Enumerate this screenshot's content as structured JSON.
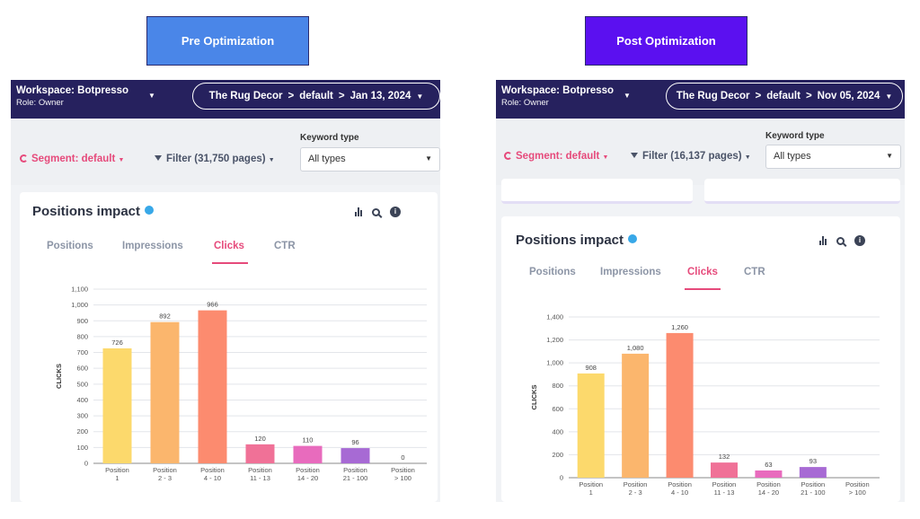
{
  "panels": [
    {
      "key": "pre",
      "badge": {
        "label": "Pre Optimization",
        "color": "#4a86e8"
      },
      "workspace": {
        "name": "Workspace: Botpresso",
        "role": "Role: Owner"
      },
      "breadcrumb": [
        "The Rug Decor",
        "default",
        "Jan 13, 2024"
      ],
      "segment": "Segment: default",
      "filter": "Filter (31,750 pages)",
      "keyword_label": "Keyword type",
      "keyword_value": "All types",
      "card_title": "Positions impact",
      "tabs": [
        "Positions",
        "Impressions",
        "Clicks",
        "CTR"
      ],
      "active_tab": 2
    },
    {
      "key": "post",
      "badge": {
        "label": "Post  Optimization",
        "color": "#5b10f0"
      },
      "workspace": {
        "name": "Workspace: Botpresso",
        "role": "Role: Owner"
      },
      "breadcrumb": [
        "The Rug Decor",
        "default",
        "Nov 05, 2024"
      ],
      "segment": "Segment: default",
      "filter": "Filter (16,137 pages)",
      "keyword_label": "Keyword type",
      "keyword_value": "All types",
      "card_title": "Positions impact",
      "tabs": [
        "Positions",
        "Impressions",
        "Clicks",
        "CTR"
      ],
      "active_tab": 2
    }
  ],
  "chart_data": [
    {
      "type": "bar",
      "ylabel": "CLICKS",
      "ylim": [
        0,
        1100
      ],
      "yticks": [
        0,
        100,
        200,
        300,
        400,
        500,
        600,
        700,
        800,
        900,
        "1,000",
        "1,100"
      ],
      "categories": [
        [
          "Position",
          "1"
        ],
        [
          "Position",
          "2 - 3"
        ],
        [
          "Position",
          "4 - 10"
        ],
        [
          "Position",
          "11 - 13"
        ],
        [
          "Position",
          "14 - 20"
        ],
        [
          "Position",
          "21 - 100"
        ],
        [
          "Position",
          "> 100"
        ]
      ],
      "values": [
        726,
        892,
        966,
        120,
        110,
        96,
        0
      ],
      "value_labels": [
        "726",
        "892",
        "966",
        "120",
        "110",
        "96",
        "0"
      ],
      "colors": [
        "#fcd96c",
        "#fbb66d",
        "#fc8b6f",
        "#f07197",
        "#e86bbd",
        "#a76ad4",
        "#8c72d6"
      ],
      "grid": true
    },
    {
      "type": "bar",
      "ylabel": "CLICKS",
      "ylim": [
        0,
        1400
      ],
      "yticks": [
        0,
        200,
        400,
        600,
        800,
        "1,000",
        "1,200",
        "1,400"
      ],
      "categories": [
        [
          "Position",
          "1"
        ],
        [
          "Position",
          "2 - 3"
        ],
        [
          "Position",
          "4 - 10"
        ],
        [
          "Position",
          "11 - 13"
        ],
        [
          "Position",
          "14 - 20"
        ],
        [
          "Position",
          "21 - 100"
        ],
        [
          "Position",
          "> 100"
        ]
      ],
      "values": [
        908,
        1080,
        1260,
        132,
        63,
        93,
        0
      ],
      "value_labels": [
        "908",
        "1,080",
        "1,260",
        "132",
        "63",
        "93",
        ""
      ],
      "colors": [
        "#fcd96c",
        "#fbb66d",
        "#fc8b6f",
        "#f07197",
        "#e86bbd",
        "#a76ad4",
        "#8c72d6"
      ],
      "grid": true
    }
  ]
}
